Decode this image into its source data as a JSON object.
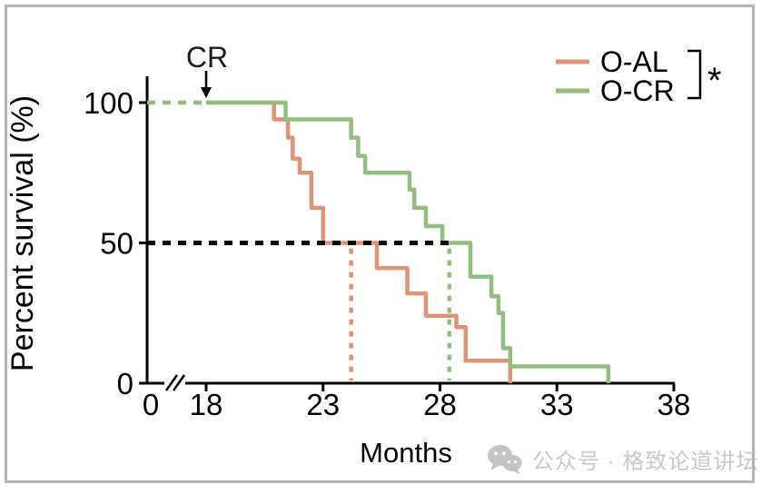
{
  "chart_data": {
    "type": "line",
    "subtype": "kaplan-meier-step-survival",
    "title": "",
    "xlabel": "Months",
    "ylabel": "Percent survival (%)",
    "x_ticks": [
      0,
      18,
      23,
      28,
      33,
      38
    ],
    "y_ticks": [
      0,
      50,
      100
    ],
    "x_axis_break_between": [
      0,
      18
    ],
    "ylim": [
      0,
      100
    ],
    "grid": "off",
    "legend_position": "top-right",
    "series": [
      {
        "name": "O-AL",
        "color": "#dd9479",
        "median_months": 24.2,
        "steps": [
          [
            18,
            100
          ],
          [
            20.9,
            94
          ],
          [
            21.5,
            87.5
          ],
          [
            21.7,
            80
          ],
          [
            22.0,
            75
          ],
          [
            22.5,
            62.5
          ],
          [
            23.0,
            50
          ],
          [
            25.3,
            41
          ],
          [
            26.6,
            32
          ],
          [
            27.4,
            24
          ],
          [
            28.7,
            20
          ],
          [
            29.1,
            8
          ],
          [
            31.0,
            0
          ]
        ]
      },
      {
        "name": "O-CR",
        "color": "#92bd7f",
        "median_months": 28.4,
        "steps": [
          [
            18,
            100
          ],
          [
            21.4,
            94
          ],
          [
            24.2,
            87.5
          ],
          [
            24.5,
            81
          ],
          [
            24.8,
            75
          ],
          [
            26.7,
            69
          ],
          [
            26.9,
            62.5
          ],
          [
            27.4,
            56
          ],
          [
            28.1,
            50
          ],
          [
            29.3,
            38
          ],
          [
            30.2,
            31
          ],
          [
            30.5,
            25
          ],
          [
            30.7,
            12.5
          ],
          [
            31.0,
            6
          ],
          [
            35.2,
            0
          ]
        ]
      }
    ],
    "annotations": {
      "cr_label": "CR",
      "cr_month": 18,
      "significance": "*",
      "median_line_percent": 50,
      "pre_cr_dotted": {
        "from_month": 0,
        "to_month": 18,
        "percent": 100
      }
    }
  },
  "watermark": {
    "icon": "wechat-icon",
    "text": "公众号 · 格致论道讲坛"
  }
}
